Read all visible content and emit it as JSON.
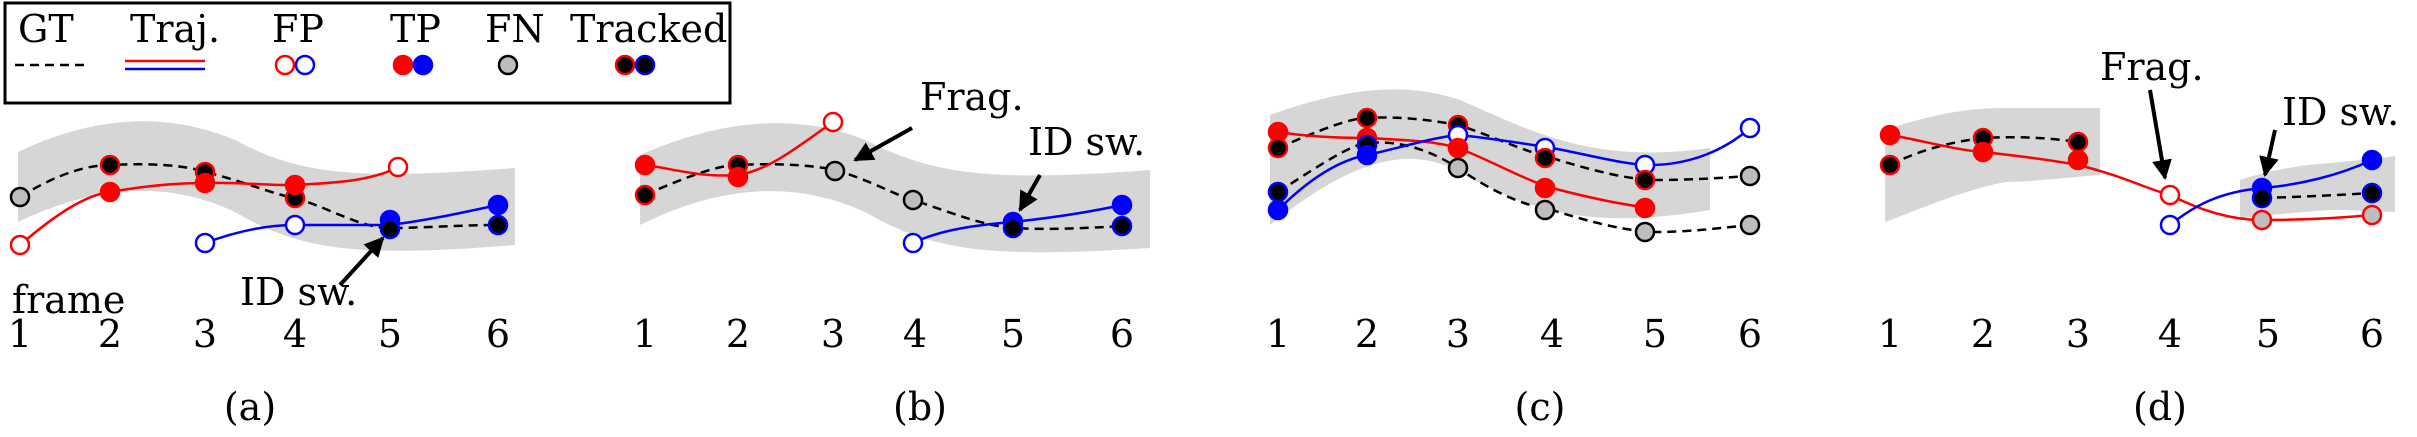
{
  "legend": {
    "items": [
      {
        "key": "gt",
        "label": "GT"
      },
      {
        "key": "traj",
        "label": "Traj."
      },
      {
        "key": "fp",
        "label": "FP"
      },
      {
        "key": "tp",
        "label": "TP"
      },
      {
        "key": "fn",
        "label": "FN"
      },
      {
        "key": "tracked",
        "label": "Tracked"
      }
    ]
  },
  "colors": {
    "red": "#ff0000",
    "blue": "#0000ff",
    "gray_marker": "#bdbdbd",
    "band": "#d6d6d6",
    "black": "#000000"
  },
  "panels": [
    {
      "key": "a",
      "caption": "(a)",
      "frame_label": "frame",
      "frames": [
        "1",
        "2",
        "3",
        "4",
        "5",
        "6"
      ],
      "annotations": [
        {
          "key": "idsw",
          "text": "ID sw."
        }
      ]
    },
    {
      "key": "b",
      "caption": "(b)",
      "frames": [
        "1",
        "2",
        "3",
        "4",
        "5",
        "6"
      ],
      "annotations": [
        {
          "key": "frag",
          "text": "Frag."
        },
        {
          "key": "idsw",
          "text": "ID sw."
        }
      ]
    },
    {
      "key": "c",
      "caption": "(c)",
      "frames": [
        "1",
        "2",
        "3",
        "4",
        "5",
        "6"
      ],
      "annotations": []
    },
    {
      "key": "d",
      "caption": "(d)",
      "frames": [
        "1",
        "2",
        "3",
        "4",
        "5",
        "6"
      ],
      "annotations": [
        {
          "key": "frag",
          "text": "Frag."
        },
        {
          "key": "idsw",
          "text": "ID sw."
        }
      ]
    }
  ]
}
